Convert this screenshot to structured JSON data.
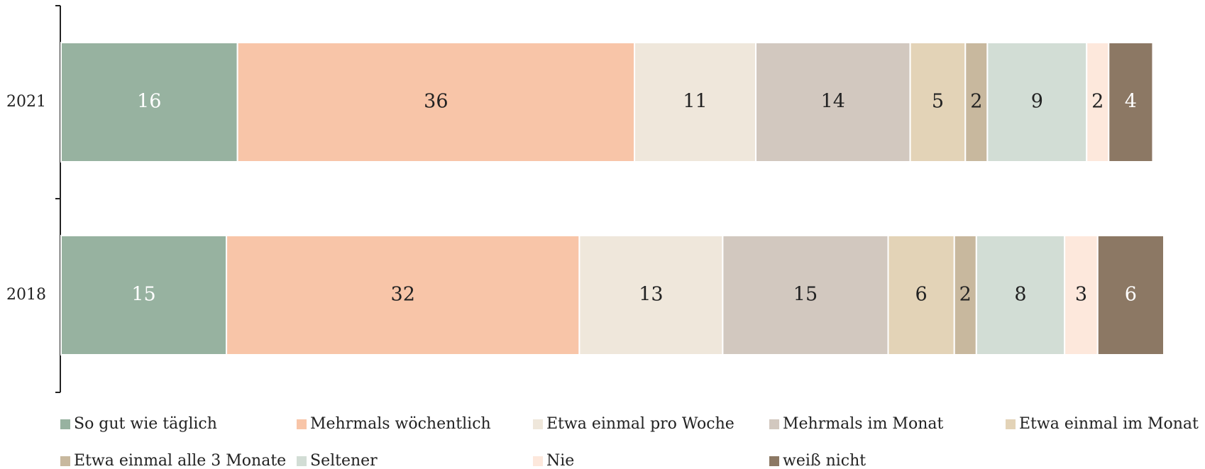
{
  "chart_data": {
    "type": "stacked_barh",
    "categories": [
      "2021",
      "2018"
    ],
    "xlim": [
      0,
      100
    ],
    "series": [
      {
        "name": "So gut wie täglich",
        "color": "#97b2a0",
        "values": [
          16,
          15
        ]
      },
      {
        "name": "Mehrmals wöchentlich",
        "color": "#f8c5a8",
        "values": [
          36,
          32
        ]
      },
      {
        "name": "Etwa einmal pro Woche",
        "color": "#efe7db",
        "values": [
          11,
          13
        ]
      },
      {
        "name": "Mehrmals im Monat",
        "color": "#d2c8bf",
        "values": [
          14,
          15
        ]
      },
      {
        "name": "Etwa einmal im Monat",
        "color": "#e3d3b7",
        "values": [
          5,
          6
        ]
      },
      {
        "name": "Etwa einmal alle 3 Monate",
        "color": "#c8b89e",
        "values": [
          2,
          2
        ]
      },
      {
        "name": "Seltener",
        "color": "#d2ddd5",
        "values": [
          9,
          8
        ]
      },
      {
        "name": "Nie",
        "color": "#fde8dc",
        "values": [
          2,
          3
        ]
      },
      {
        "name": "weiß nicht",
        "color": "#8c7864",
        "values": [
          4,
          6
        ]
      }
    ],
    "legend": "bottom"
  }
}
